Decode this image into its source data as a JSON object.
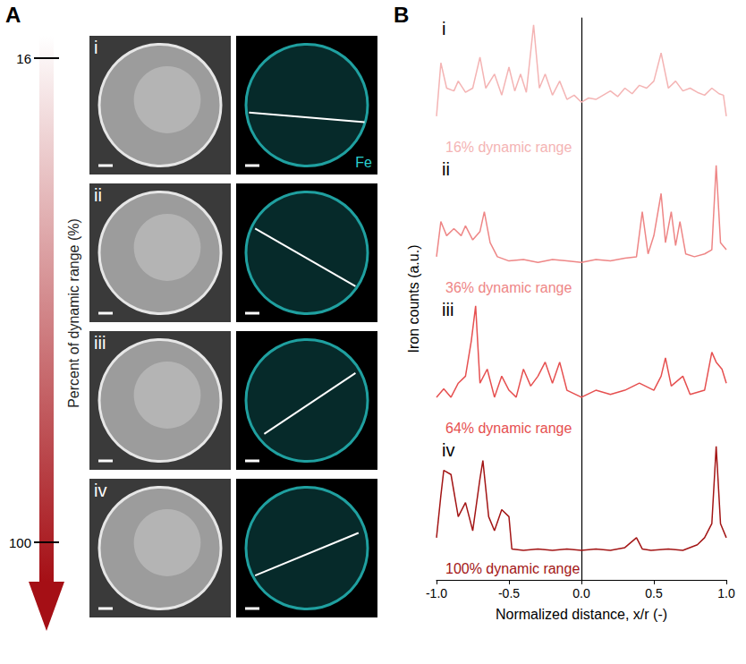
{
  "panel_a": {
    "letter": "A",
    "scale_title": "Percent of dynamic range (%)",
    "scale_ticks": [
      16,
      100
    ],
    "panels": [
      "i",
      "ii",
      "iii",
      "iv"
    ],
    "map_label": "Fe"
  },
  "panel_b": {
    "letter": "B",
    "ylabel": "Iron counts (a.u.)",
    "xlabel": "Normalized distance, x/r (-)"
  },
  "chart_data": [
    {
      "type": "line",
      "label": "i",
      "annotation": "16% dynamic range",
      "color": "#f4b4b4",
      "x": [
        -1,
        -0.97,
        -0.93,
        -0.88,
        -0.85,
        -0.8,
        -0.75,
        -0.7,
        -0.66,
        -0.6,
        -0.55,
        -0.5,
        -0.46,
        -0.42,
        -0.38,
        -0.33,
        -0.29,
        -0.25,
        -0.2,
        -0.15,
        -0.1,
        -0.05,
        0,
        0.05,
        0.1,
        0.15,
        0.2,
        0.25,
        0.3,
        0.35,
        0.4,
        0.45,
        0.5,
        0.55,
        0.6,
        0.65,
        0.7,
        0.75,
        0.8,
        0.85,
        0.9,
        0.95,
        0.98,
        1
      ],
      "values": [
        0.3,
        0.68,
        0.5,
        0.48,
        0.55,
        0.47,
        0.5,
        0.72,
        0.5,
        0.6,
        0.45,
        0.65,
        0.48,
        0.6,
        0.47,
        0.95,
        0.5,
        0.6,
        0.45,
        0.55,
        0.42,
        0.45,
        0.4,
        0.43,
        0.42,
        0.45,
        0.48,
        0.44,
        0.5,
        0.46,
        0.52,
        0.5,
        0.55,
        0.75,
        0.5,
        0.55,
        0.48,
        0.5,
        0.47,
        0.45,
        0.5,
        0.46,
        0.45,
        0.3
      ],
      "xlim": [
        -1,
        1
      ],
      "ylim": [
        0,
        1
      ],
      "tick_labels": false
    },
    {
      "type": "line",
      "label": "ii",
      "annotation": "36% dynamic range",
      "color": "#ee8686",
      "x": [
        -1,
        -0.97,
        -0.93,
        -0.88,
        -0.83,
        -0.8,
        -0.75,
        -0.7,
        -0.67,
        -0.63,
        -0.58,
        -0.5,
        -0.4,
        -0.3,
        -0.2,
        -0.1,
        0,
        0.1,
        0.2,
        0.3,
        0.38,
        0.42,
        0.46,
        0.5,
        0.55,
        0.58,
        0.62,
        0.65,
        0.68,
        0.72,
        0.78,
        0.85,
        0.9,
        0.93,
        0.96,
        1
      ],
      "values": [
        0.3,
        0.55,
        0.45,
        0.5,
        0.45,
        0.52,
        0.42,
        0.48,
        0.62,
        0.4,
        0.3,
        0.27,
        0.28,
        0.26,
        0.28,
        0.27,
        0.26,
        0.28,
        0.27,
        0.29,
        0.3,
        0.62,
        0.32,
        0.45,
        0.75,
        0.4,
        0.62,
        0.38,
        0.55,
        0.32,
        0.3,
        0.32,
        0.35,
        0.95,
        0.4,
        0.35
      ],
      "xlim": [
        -1,
        1
      ],
      "ylim": [
        0,
        1
      ],
      "tick_labels": false
    },
    {
      "type": "line",
      "label": "iii",
      "annotation": "64% dynamic range",
      "color": "#e65050",
      "x": [
        -1,
        -0.95,
        -0.9,
        -0.85,
        -0.8,
        -0.76,
        -0.73,
        -0.7,
        -0.65,
        -0.6,
        -0.55,
        -0.5,
        -0.45,
        -0.4,
        -0.35,
        -0.3,
        -0.25,
        -0.2,
        -0.15,
        -0.1,
        0,
        0.1,
        0.2,
        0.3,
        0.4,
        0.5,
        0.55,
        0.58,
        0.62,
        0.7,
        0.75,
        0.85,
        0.9,
        0.93,
        0.97,
        1
      ],
      "values": [
        0.3,
        0.36,
        0.3,
        0.4,
        0.45,
        0.7,
        0.95,
        0.4,
        0.5,
        0.3,
        0.45,
        0.35,
        0.3,
        0.5,
        0.38,
        0.45,
        0.55,
        0.4,
        0.55,
        0.35,
        0.3,
        0.35,
        0.32,
        0.35,
        0.4,
        0.35,
        0.45,
        0.58,
        0.38,
        0.45,
        0.32,
        0.35,
        0.62,
        0.55,
        0.5,
        0.4
      ],
      "xlim": [
        -1,
        1
      ],
      "ylim": [
        0,
        1
      ],
      "tick_labels": false
    },
    {
      "type": "line",
      "label": "iv",
      "annotation": "100% dynamic range",
      "color": "#a31515",
      "x": [
        -1,
        -0.97,
        -0.95,
        -0.9,
        -0.85,
        -0.8,
        -0.75,
        -0.7,
        -0.68,
        -0.64,
        -0.6,
        -0.55,
        -0.5,
        -0.48,
        -0.4,
        -0.3,
        -0.2,
        -0.1,
        0,
        0.1,
        0.2,
        0.3,
        0.38,
        0.42,
        0.48,
        0.6,
        0.7,
        0.8,
        0.85,
        0.9,
        0.93,
        0.96,
        1
      ],
      "values": [
        0.3,
        0.6,
        0.78,
        0.75,
        0.45,
        0.55,
        0.35,
        0.72,
        0.85,
        0.45,
        0.35,
        0.5,
        0.45,
        0.22,
        0.21,
        0.22,
        0.21,
        0.22,
        0.21,
        0.22,
        0.21,
        0.23,
        0.3,
        0.22,
        0.21,
        0.22,
        0.21,
        0.25,
        0.3,
        0.4,
        0.95,
        0.4,
        0.3
      ],
      "xlim": [
        -1,
        1
      ],
      "ylim": [
        0,
        1
      ],
      "tick_labels": "x",
      "xticks": [
        {
          "value": -1,
          "label": "-1.0"
        },
        {
          "value": -0.5,
          "label": "-0.5"
        },
        {
          "value": 0,
          "label": "0.0"
        },
        {
          "value": 0.5,
          "label": "0.5"
        },
        {
          "value": 1,
          "label": "1.0"
        }
      ]
    }
  ]
}
